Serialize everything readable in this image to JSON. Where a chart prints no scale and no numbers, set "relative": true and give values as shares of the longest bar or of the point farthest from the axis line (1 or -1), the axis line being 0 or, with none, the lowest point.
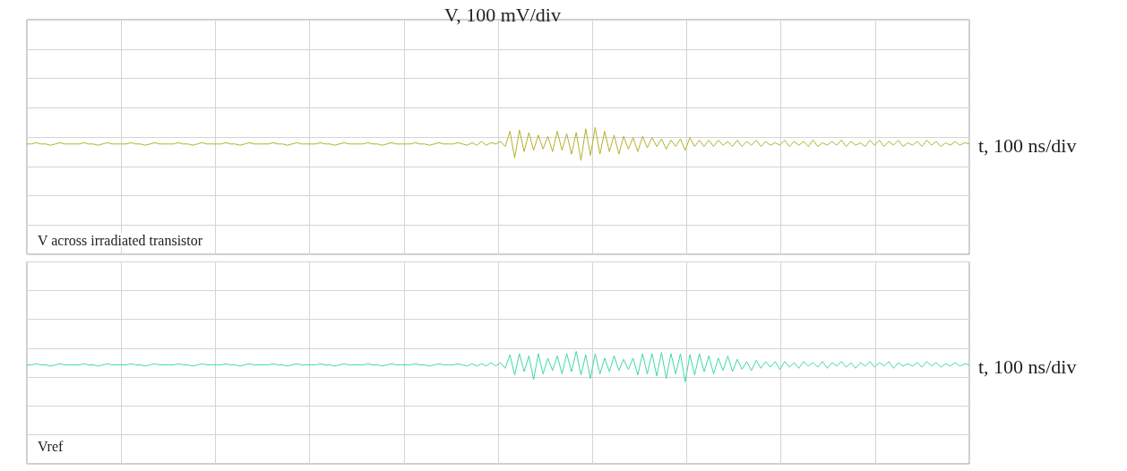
{
  "chart_data": [
    {
      "type": "line",
      "ylabel": "V, 100 mV/div",
      "xlabel": "t, 100 ns/div",
      "relative": true,
      "grid": true,
      "marker": "none",
      "annotations": [
        "V across irradiated transistor"
      ],
      "categories": [
        null,
        null,
        null,
        null,
        null,
        null,
        null,
        null,
        null,
        null,
        null,
        null,
        null,
        null,
        null,
        null,
        null,
        null,
        null,
        null,
        null,
        null,
        null,
        null,
        null,
        null,
        null,
        null,
        null,
        null,
        null,
        null,
        null,
        null,
        null,
        null,
        null,
        null,
        null,
        null,
        null,
        null,
        null,
        null,
        null,
        null,
        null,
        null,
        null,
        null,
        null,
        null,
        null,
        null,
        null,
        null,
        null,
        null,
        null,
        null,
        null,
        null,
        null,
        null,
        null,
        null,
        null,
        null,
        null,
        null,
        null,
        null,
        null,
        null,
        null,
        null,
        null,
        null,
        null,
        null,
        null,
        null,
        null,
        null,
        null,
        null,
        null,
        null,
        null,
        null,
        null,
        null,
        null,
        null,
        null,
        null,
        null,
        null,
        null,
        null,
        null,
        null,
        null,
        null,
        null,
        null,
        null,
        null,
        null,
        null,
        null,
        null,
        null,
        null,
        null,
        null,
        null,
        null,
        null,
        null,
        null,
        null,
        null,
        null,
        null,
        null,
        null,
        null,
        null,
        null,
        null,
        null,
        null,
        null,
        null,
        null,
        null,
        null,
        null,
        null,
        null,
        null,
        null,
        null,
        null,
        null,
        null,
        null,
        null,
        null,
        null,
        null,
        null,
        null,
        null,
        null,
        null,
        null,
        null,
        null,
        null,
        null,
        null,
        null,
        null,
        null,
        null,
        null,
        null,
        null,
        null,
        null,
        null,
        null,
        null,
        null,
        null,
        null,
        null,
        null,
        null,
        null,
        null,
        null,
        null,
        null,
        null,
        null,
        null,
        null,
        null,
        null,
        null,
        null,
        null,
        null,
        null,
        null,
        null,
        null
      ],
      "series": [
        {
          "color": "#b3b12c",
          "values": [
            0.87,
            0.87,
            0.88,
            0.87,
            0.87,
            0.86,
            0.87,
            0.88,
            0.87,
            0.87,
            0.87,
            0.87,
            0.88,
            0.87,
            0.87,
            0.86,
            0.87,
            0.88,
            0.87,
            0.87,
            0.87,
            0.87,
            0.88,
            0.87,
            0.87,
            0.86,
            0.87,
            0.88,
            0.87,
            0.87,
            0.87,
            0.87,
            0.88,
            0.87,
            0.87,
            0.86,
            0.87,
            0.88,
            0.87,
            0.87,
            0.87,
            0.87,
            0.88,
            0.87,
            0.87,
            0.86,
            0.87,
            0.88,
            0.87,
            0.87,
            0.87,
            0.87,
            0.88,
            0.87,
            0.87,
            0.86,
            0.87,
            0.88,
            0.87,
            0.87,
            0.87,
            0.87,
            0.88,
            0.87,
            0.87,
            0.86,
            0.87,
            0.88,
            0.87,
            0.87,
            0.87,
            0.87,
            0.88,
            0.87,
            0.87,
            0.86,
            0.87,
            0.88,
            0.87,
            0.87,
            0.87,
            0.87,
            0.88,
            0.87,
            0.87,
            0.86,
            0.87,
            0.88,
            0.87,
            0.87,
            0.87,
            0.88,
            0.87,
            0.86,
            0.88,
            0.86,
            0.89,
            0.86,
            0.88,
            0.87,
            0.89,
            0.85,
            0.97,
            0.76,
            0.98,
            0.81,
            0.96,
            0.82,
            0.94,
            0.83,
            0.93,
            0.81,
            0.97,
            0.82,
            0.95,
            0.79,
            0.96,
            0.74,
            0.99,
            0.78,
            1,
            0.79,
            0.97,
            0.81,
            0.94,
            0.79,
            0.93,
            0.83,
            0.92,
            0.81,
            0.93,
            0.84,
            0.92,
            0.85,
            0.91,
            0.83,
            0.9,
            0.85,
            0.91,
            0.82,
            0.92,
            0.85,
            0.9,
            0.85,
            0.9,
            0.85,
            0.9,
            0.86,
            0.89,
            0.85,
            0.9,
            0.85,
            0.89,
            0.86,
            0.9,
            0.85,
            0.89,
            0.86,
            0.88,
            0.86,
            0.9,
            0.85,
            0.89,
            0.86,
            0.89,
            0.85,
            0.9,
            0.85,
            0.88,
            0.86,
            0.89,
            0.86,
            0.9,
            0.85,
            0.89,
            0.86,
            0.88,
            0.85,
            0.9,
            0.86,
            0.9,
            0.85,
            0.89,
            0.86,
            0.9,
            0.85,
            0.88,
            0.86,
            0.89,
            0.85,
            0.9,
            0.86,
            0.89,
            0.85,
            0.88,
            0.86,
            0.89,
            0.86,
            0.88,
            0.87
          ]
        }
      ]
    },
    {
      "type": "line",
      "xlabel": "t, 100 ns/div",
      "relative": true,
      "grid": true,
      "marker": "none",
      "annotations": [
        "Vref"
      ],
      "categories": [
        null,
        null,
        null,
        null,
        null,
        null,
        null,
        null,
        null,
        null,
        null,
        null,
        null,
        null,
        null,
        null,
        null,
        null,
        null,
        null,
        null,
        null,
        null,
        null,
        null,
        null,
        null,
        null,
        null,
        null,
        null,
        null,
        null,
        null,
        null,
        null,
        null,
        null,
        null,
        null,
        null,
        null,
        null,
        null,
        null,
        null,
        null,
        null,
        null,
        null,
        null,
        null,
        null,
        null,
        null,
        null,
        null,
        null,
        null,
        null,
        null,
        null,
        null,
        null,
        null,
        null,
        null,
        null,
        null,
        null,
        null,
        null,
        null,
        null,
        null,
        null,
        null,
        null,
        null,
        null,
        null,
        null,
        null,
        null,
        null,
        null,
        null,
        null,
        null,
        null,
        null,
        null,
        null,
        null,
        null,
        null,
        null,
        null,
        null,
        null,
        null,
        null,
        null,
        null,
        null,
        null,
        null,
        null,
        null,
        null,
        null,
        null,
        null,
        null,
        null,
        null,
        null,
        null,
        null,
        null,
        null,
        null,
        null,
        null,
        null,
        null,
        null,
        null,
        null,
        null,
        null,
        null,
        null,
        null,
        null,
        null,
        null,
        null,
        null,
        null,
        null,
        null,
        null,
        null,
        null,
        null,
        null,
        null,
        null,
        null,
        null,
        null,
        null,
        null,
        null,
        null,
        null,
        null,
        null,
        null,
        null,
        null,
        null,
        null,
        null,
        null,
        null,
        null,
        null,
        null,
        null,
        null,
        null,
        null,
        null,
        null,
        null,
        null,
        null,
        null,
        null,
        null,
        null,
        null,
        null,
        null,
        null,
        null,
        null,
        null,
        null,
        null,
        null,
        null,
        null,
        null,
        null,
        null,
        null,
        null
      ],
      "series": [
        {
          "color": "#3fdb9f",
          "values": [
            0.88,
            0.88,
            0.89,
            0.88,
            0.88,
            0.87,
            0.88,
            0.89,
            0.88,
            0.88,
            0.88,
            0.88,
            0.89,
            0.88,
            0.88,
            0.87,
            0.88,
            0.89,
            0.88,
            0.88,
            0.88,
            0.88,
            0.89,
            0.88,
            0.88,
            0.87,
            0.88,
            0.89,
            0.88,
            0.88,
            0.88,
            0.88,
            0.89,
            0.88,
            0.88,
            0.87,
            0.88,
            0.89,
            0.88,
            0.88,
            0.88,
            0.88,
            0.89,
            0.88,
            0.88,
            0.87,
            0.88,
            0.89,
            0.88,
            0.88,
            0.88,
            0.88,
            0.89,
            0.88,
            0.88,
            0.87,
            0.88,
            0.89,
            0.88,
            0.88,
            0.88,
            0.88,
            0.89,
            0.88,
            0.88,
            0.87,
            0.88,
            0.89,
            0.88,
            0.88,
            0.88,
            0.88,
            0.89,
            0.88,
            0.88,
            0.87,
            0.88,
            0.89,
            0.88,
            0.88,
            0.88,
            0.88,
            0.89,
            0.88,
            0.88,
            0.87,
            0.88,
            0.89,
            0.88,
            0.88,
            0.88,
            0.89,
            0.88,
            0.87,
            0.89,
            0.87,
            0.89,
            0.87,
            0.9,
            0.87,
            0.9,
            0.85,
            0.97,
            0.79,
            0.98,
            0.82,
            0.96,
            0.75,
            0.98,
            0.8,
            0.94,
            0.83,
            0.96,
            0.8,
            0.98,
            0.82,
            1,
            0.79,
            0.97,
            0.76,
            0.98,
            0.8,
            0.94,
            0.82,
            0.96,
            0.83,
            0.93,
            0.84,
            0.94,
            0.79,
            0.98,
            0.8,
            0.98,
            0.78,
            0.99,
            0.76,
            0.98,
            0.8,
            0.98,
            0.73,
            0.97,
            0.79,
            0.98,
            0.82,
            0.96,
            0.8,
            0.94,
            0.83,
            0.96,
            0.82,
            0.93,
            0.84,
            0.91,
            0.83,
            0.92,
            0.85,
            0.91,
            0.86,
            0.91,
            0.84,
            0.91,
            0.86,
            0.9,
            0.85,
            0.91,
            0.87,
            0.9,
            0.86,
            0.91,
            0.85,
            0.9,
            0.87,
            0.91,
            0.86,
            0.9,
            0.85,
            0.9,
            0.87,
            0.91,
            0.86,
            0.9,
            0.87,
            0.91,
            0.85,
            0.9,
            0.87,
            0.89,
            0.87,
            0.9,
            0.86,
            0.91,
            0.87,
            0.9,
            0.86,
            0.89,
            0.87,
            0.9,
            0.87,
            0.89,
            0.88
          ]
        }
      ]
    }
  ]
}
